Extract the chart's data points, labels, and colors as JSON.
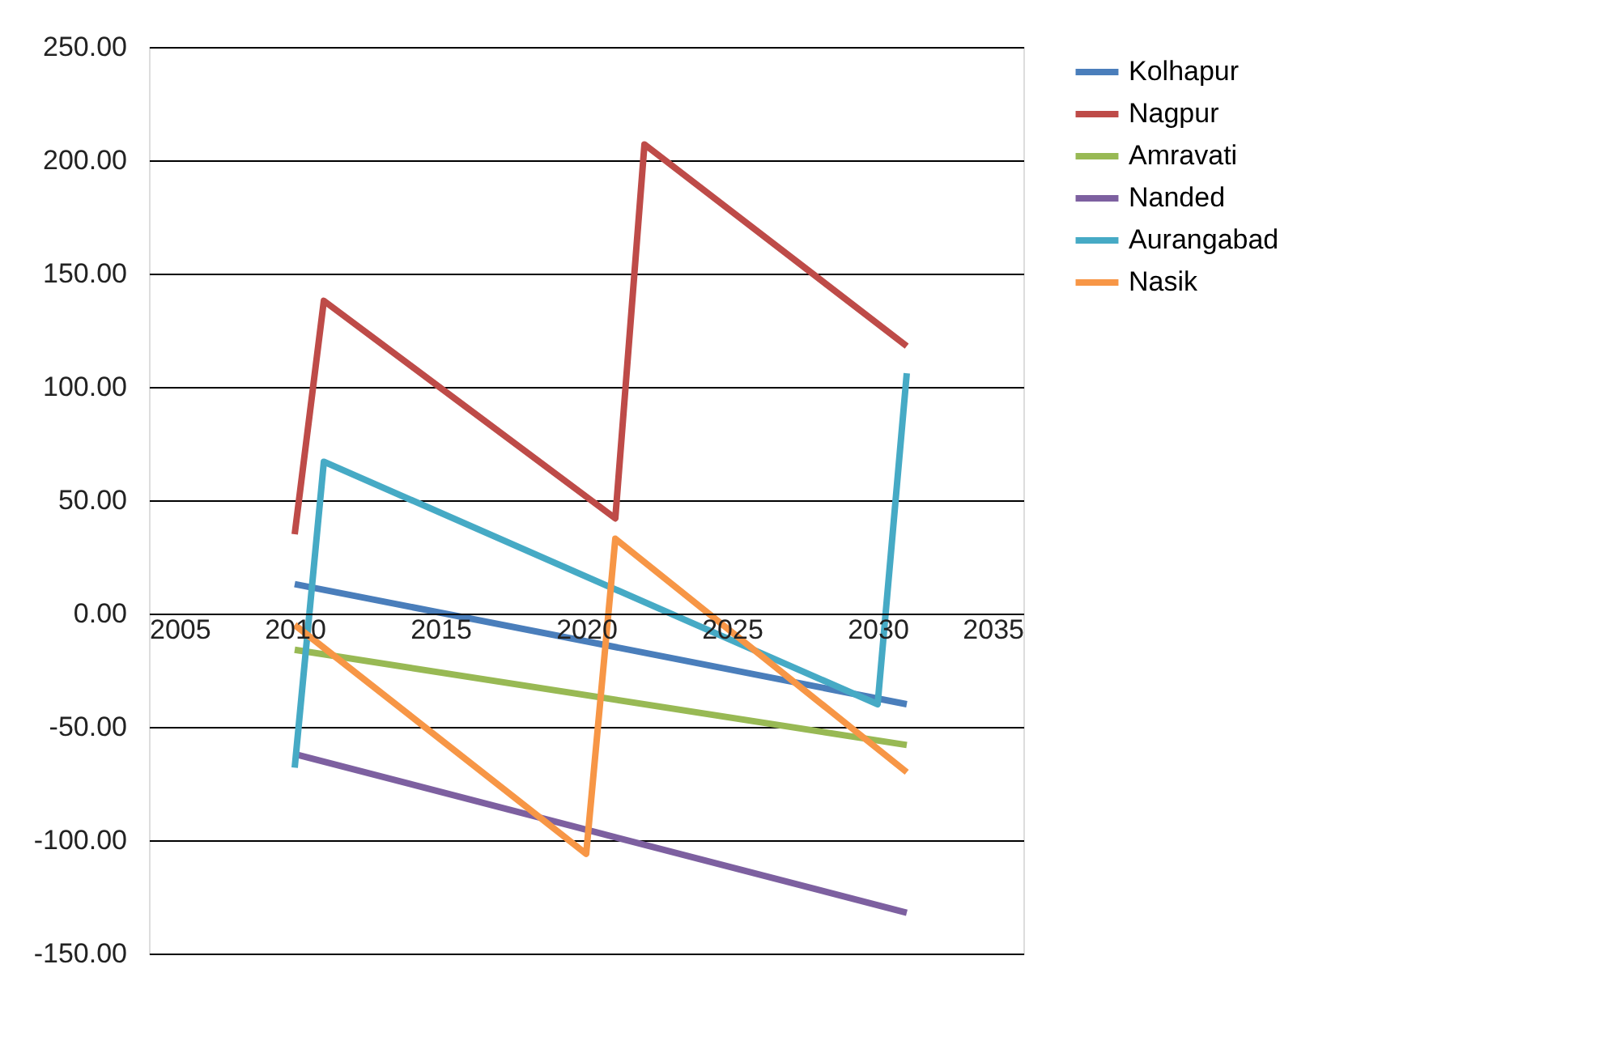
{
  "chart_data": {
    "type": "line",
    "xlim": [
      2005,
      2035
    ],
    "xticks": [
      2005,
      2010,
      2015,
      2020,
      2025,
      2030,
      2035
    ],
    "ylim": [
      -150,
      250
    ],
    "yticks": [
      {
        "value": -150,
        "label": "-150.00"
      },
      {
        "value": -100,
        "label": "-100.00"
      },
      {
        "value": -50,
        "label": "-50.00"
      },
      {
        "value": 0,
        "label": "0.00"
      },
      {
        "value": 50,
        "label": "50.00"
      },
      {
        "value": 100,
        "label": "100.00"
      },
      {
        "value": 150,
        "label": "150.00"
      },
      {
        "value": 200,
        "label": "200.00"
      },
      {
        "value": 250,
        "label": "250.00"
      }
    ],
    "grid": "y",
    "legend": "right",
    "marker": "none",
    "line_style": "solid",
    "series": [
      {
        "name": "Kolhapur",
        "color": "#4a7ebb",
        "x": [
          2010,
          2031
        ],
        "values": [
          13,
          -40
        ]
      },
      {
        "name": "Nagpur",
        "color": "#be4b48",
        "x": [
          2010,
          2011,
          2021,
          2022,
          2031
        ],
        "values": [
          35,
          138,
          42,
          207,
          118
        ]
      },
      {
        "name": "Amravati",
        "color": "#98b954",
        "x": [
          2010,
          2031
        ],
        "values": [
          -16,
          -58
        ]
      },
      {
        "name": "Nanded",
        "color": "#7d60a0",
        "x": [
          2010,
          2031
        ],
        "values": [
          -62,
          -132
        ]
      },
      {
        "name": "Aurangabad",
        "color": "#46aac5",
        "x": [
          2010,
          2011,
          2030,
          2031
        ],
        "values": [
          -68,
          67,
          -40,
          106
        ]
      },
      {
        "name": "Nasik",
        "color": "#f79646",
        "x": [
          2010,
          2020,
          2021,
          2031
        ],
        "values": [
          -5,
          -106,
          33,
          -70
        ]
      }
    ]
  }
}
